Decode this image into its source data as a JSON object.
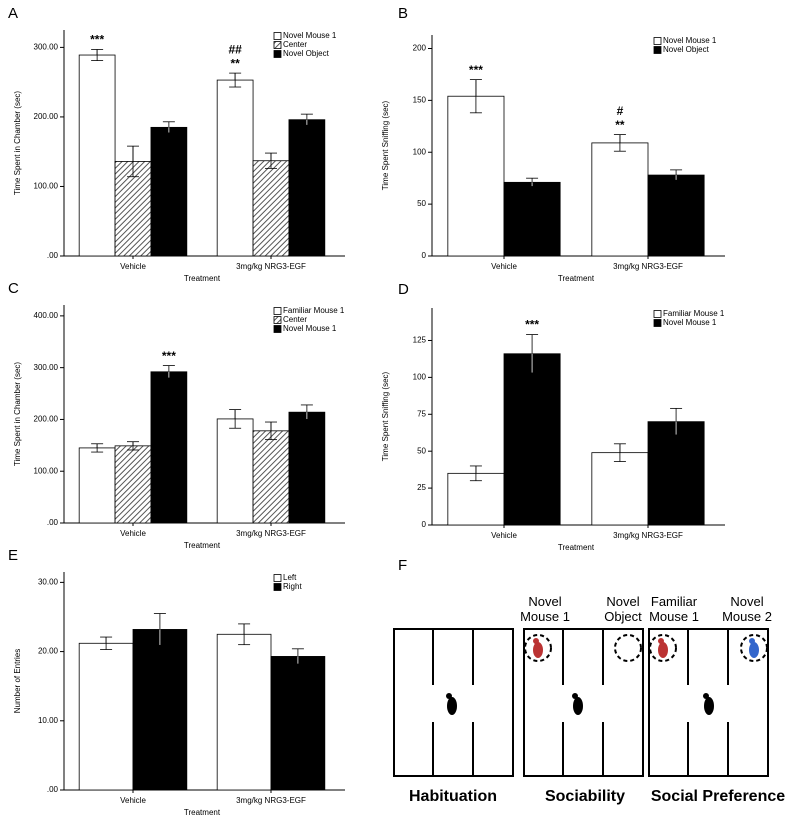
{
  "chart_data": [
    {
      "label": "A",
      "type": "bar",
      "legend": "upper right",
      "ylabel": "Time Spent in Chamber (sec)",
      "xlabel": "Treatment",
      "categories": [
        "Vehicle",
        "3mg/kg NRG3-EGF"
      ],
      "ylim": [
        0,
        325
      ],
      "yticks": [
        {
          "value": 0,
          "label": ".00"
        },
        {
          "value": 100,
          "label": "100.00"
        },
        {
          "value": 200,
          "label": "200.00"
        },
        {
          "value": 300,
          "label": "300.00"
        }
      ],
      "series": [
        {
          "name": "Novel Mouse 1",
          "color": "#ffffff",
          "values": [
            289,
            253
          ],
          "errors": [
            8,
            10
          ],
          "annotations": [
            [
              "***"
            ],
            [
              "**",
              "##"
            ]
          ]
        },
        {
          "name": "Center",
          "color": "#ffffff",
          "hatch": true,
          "values": [
            136,
            137
          ],
          "errors": [
            22,
            11
          ]
        },
        {
          "name": "Novel Object",
          "color": "#000000",
          "values": [
            185,
            196
          ],
          "errors": [
            8,
            8
          ]
        }
      ]
    },
    {
      "label": "B",
      "type": "bar",
      "legend": "upper right",
      "ylabel": "Time Spent Sniffing (sec)",
      "xlabel": "Treatment",
      "categories": [
        "Vehicle",
        "3mg/kg NRG3-EGF"
      ],
      "ylim": [
        0,
        213
      ],
      "yticks": [
        0,
        50,
        100,
        150,
        200
      ],
      "series": [
        {
          "name": "Novel Mouse 1",
          "color": "#ffffff",
          "values": [
            154,
            109
          ],
          "errors": [
            16,
            8
          ],
          "annotations": [
            [
              "***"
            ],
            [
              "**",
              "#"
            ]
          ]
        },
        {
          "name": "Novel Object",
          "color": "#000000",
          "values": [
            71,
            78
          ],
          "errors": [
            4,
            5
          ]
        }
      ]
    },
    {
      "label": "C",
      "type": "bar",
      "legend": "upper right",
      "ylabel": "Time Spent in Chamber (sec)",
      "xlabel": "Treatment",
      "categories": [
        "Vehicle",
        "3mg/kg NRG3-EGF"
      ],
      "ylim": [
        0,
        421
      ],
      "yticks": [
        {
          "value": 0,
          "label": ".00"
        },
        {
          "value": 100,
          "label": "100.00"
        },
        {
          "value": 200,
          "label": "200.00"
        },
        {
          "value": 300,
          "label": "300.00"
        },
        {
          "value": 400,
          "label": "400.00"
        }
      ],
      "series": [
        {
          "name": "Familiar Mouse 1",
          "color": "#ffffff",
          "values": [
            145,
            201
          ],
          "errors": [
            8,
            18
          ]
        },
        {
          "name": "Center",
          "color": "#ffffff",
          "hatch": true,
          "values": [
            149,
            178
          ],
          "errors": [
            8,
            17
          ]
        },
        {
          "name": "Novel Mouse 1",
          "color": "#000000",
          "values": [
            292,
            214
          ],
          "errors": [
            12,
            14
          ],
          "annotations": [
            [
              "***"
            ],
            []
          ]
        }
      ]
    },
    {
      "label": "D",
      "type": "bar",
      "legend": "upper right",
      "ylabel": "Time Spent Sniffing (sec)",
      "xlabel": "Treatment",
      "categories": [
        "Vehicle",
        "3mg/kg NRG3-EGF"
      ],
      "ylim": [
        0,
        147
      ],
      "yticks": [
        0,
        25,
        50,
        75,
        100,
        125
      ],
      "series": [
        {
          "name": "Familiar Mouse 1",
          "color": "#ffffff",
          "values": [
            35,
            49
          ],
          "errors": [
            5,
            6
          ]
        },
        {
          "name": "Novel Mouse 1",
          "color": "#000000",
          "values": [
            116,
            70
          ],
          "errors": [
            13,
            9
          ],
          "annotations": [
            [
              "***"
            ],
            []
          ]
        }
      ]
    },
    {
      "label": "E",
      "type": "bar",
      "legend": "upper right",
      "ylabel": "Number of Entries",
      "xlabel": "Treatment",
      "categories": [
        "Vehicle",
        "3mg/kg NRG3-EGF"
      ],
      "ylim": [
        0,
        31.5
      ],
      "yticks": [
        {
          "value": 0,
          "label": ".00"
        },
        {
          "value": 10,
          "label": "10.00"
        },
        {
          "value": 20,
          "label": "20.00"
        },
        {
          "value": 30,
          "label": "30.00"
        }
      ],
      "series": [
        {
          "name": "Left",
          "color": "#ffffff",
          "values": [
            21.2,
            22.5
          ],
          "errors": [
            0.9,
            1.5
          ]
        },
        {
          "name": "Right",
          "color": "#000000",
          "values": [
            23.2,
            19.3
          ],
          "errors": [
            2.3,
            1.1
          ]
        }
      ]
    }
  ],
  "diagram": {
    "label": "F",
    "stages": [
      {
        "title": "Habituation"
      },
      {
        "title": "Sociability",
        "left": "Novel Mouse 1",
        "right": "Novel Object"
      },
      {
        "title": "Social Preference",
        "left": "Familiar Mouse 1",
        "right": "Novel Mouse 2"
      }
    ]
  }
}
